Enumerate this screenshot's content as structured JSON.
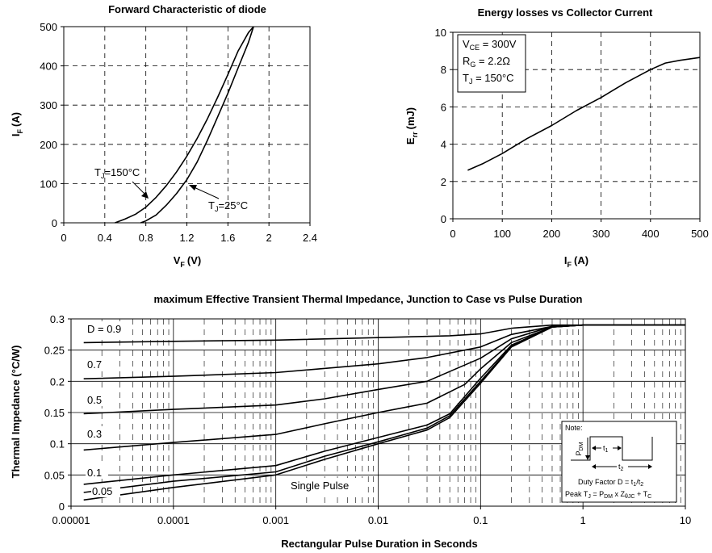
{
  "chart_data": [
    {
      "id": "diode",
      "type": "line",
      "title": "Forward Characteristic of diode",
      "xlabel": "V",
      "xlabel_sub": "F",
      "xlabel_unit": "(V)",
      "ylabel": "I",
      "ylabel_sub": "F",
      "ylabel_unit": "(A)",
      "xlim": [
        0,
        2.4
      ],
      "ylim": [
        0,
        500
      ],
      "xticks": [
        "0",
        "0.4",
        "0.8",
        "1.2",
        "1.6",
        "2",
        "2.4"
      ],
      "yticks": [
        "0",
        "100",
        "200",
        "300",
        "400",
        "500"
      ],
      "grid": "dashed",
      "series": [
        {
          "name": "TJ=150°C",
          "label": {
            "main": "T",
            "sub": "J",
            "rest": "=150°C"
          },
          "x": [
            0.5,
            0.6,
            0.7,
            0.8,
            0.9,
            1.0,
            1.1,
            1.2,
            1.3,
            1.4,
            1.5,
            1.6,
            1.7,
            1.8,
            1.85
          ],
          "y": [
            0,
            10,
            22,
            40,
            65,
            95,
            130,
            170,
            215,
            265,
            320,
            378,
            438,
            485,
            500
          ]
        },
        {
          "name": "TJ=25°C",
          "label": {
            "main": "T",
            "sub": "J",
            "rest": "=25°C"
          },
          "x": [
            0.75,
            0.8,
            0.9,
            1.0,
            1.1,
            1.2,
            1.3,
            1.4,
            1.5,
            1.6,
            1.7,
            1.8,
            1.85
          ],
          "y": [
            0,
            5,
            20,
            45,
            75,
            110,
            155,
            210,
            270,
            330,
            395,
            460,
            500
          ]
        }
      ]
    },
    {
      "id": "energy",
      "type": "line",
      "title": "Energy losses vs Collector Current",
      "xlabel": "I",
      "xlabel_sub": "F",
      "xlabel_unit": "(A)",
      "ylabel": "E",
      "ylabel_sub": "rr",
      "ylabel_unit": "(mJ)",
      "xlim": [
        0,
        500
      ],
      "ylim": [
        0,
        10
      ],
      "xticks": [
        "0",
        "100",
        "200",
        "300",
        "400",
        "500"
      ],
      "yticks": [
        "0",
        "2",
        "4",
        "6",
        "8",
        "10"
      ],
      "grid": "dashed",
      "conditions": [
        {
          "main": "V",
          "sub": "CE",
          "rest": " = 300V"
        },
        {
          "main": "R",
          "sub": "G",
          "rest": " = 2.2Ω"
        },
        {
          "main": "T",
          "sub": "J",
          "rest": " = 150°C"
        }
      ],
      "series": [
        {
          "x": [
            30,
            60,
            100,
            150,
            200,
            250,
            300,
            350,
            400,
            430,
            460,
            500
          ],
          "y": [
            2.6,
            2.95,
            3.5,
            4.3,
            5.0,
            5.8,
            6.5,
            7.3,
            8.0,
            8.35,
            8.5,
            8.65
          ]
        }
      ]
    },
    {
      "id": "thermal",
      "type": "line",
      "title": "maximum Effective Transient Thermal Impedance, Junction to Case vs Pulse Duration",
      "xlabel": "Rectangular Pulse Duration in Seconds",
      "ylabel": "Thermal Impedance (°C/W)",
      "xscale": "log",
      "xlim": [
        1e-05,
        10
      ],
      "ylim": [
        0,
        0.3
      ],
      "xticks": [
        "0.00001",
        "0.0001",
        "0.001",
        "0.01",
        "0.1",
        "1",
        "10"
      ],
      "yticks": [
        "0",
        "0.05",
        "0.1",
        "0.15",
        "0.2",
        "0.25",
        "0.3"
      ],
      "grid": "log minor dashed",
      "curve_labels": [
        "D = 0.9",
        "0.7",
        "0.5",
        "0.3",
        "0.1",
        "0.05",
        "Single Pulse"
      ],
      "series": [
        {
          "label": "D = 0.9",
          "x": [
            1.33e-05,
            0.0001,
            0.001,
            0.01,
            0.05,
            0.1,
            0.2,
            0.5,
            1,
            10
          ],
          "y": [
            0.262,
            0.264,
            0.266,
            0.27,
            0.273,
            0.276,
            0.285,
            0.29,
            0.29,
            0.29
          ]
        },
        {
          "label": "0.7",
          "x": [
            1.33e-05,
            0.0001,
            0.001,
            0.01,
            0.03,
            0.1,
            0.2,
            0.5,
            1,
            10
          ],
          "y": [
            0.204,
            0.208,
            0.214,
            0.228,
            0.238,
            0.255,
            0.275,
            0.288,
            0.29,
            0.29
          ]
        },
        {
          "label": "0.5",
          "x": [
            1.33e-05,
            0.0001,
            0.001,
            0.003,
            0.01,
            0.03,
            0.1,
            0.2,
            0.5,
            1,
            10
          ],
          "y": [
            0.148,
            0.155,
            0.162,
            0.172,
            0.187,
            0.2,
            0.237,
            0.268,
            0.288,
            0.29,
            0.29
          ]
        },
        {
          "label": "0.3",
          "x": [
            1.33e-05,
            0.0001,
            0.001,
            0.003,
            0.01,
            0.03,
            0.07,
            0.1,
            0.2,
            0.5,
            1,
            10
          ],
          "y": [
            0.09,
            0.102,
            0.115,
            0.132,
            0.15,
            0.165,
            0.195,
            0.22,
            0.262,
            0.287,
            0.29,
            0.29
          ]
        },
        {
          "label": "0.1",
          "x": [
            1.33e-05,
            0.0001,
            0.001,
            0.003,
            0.01,
            0.03,
            0.05,
            0.1,
            0.2,
            0.5,
            1,
            10
          ],
          "y": [
            0.035,
            0.05,
            0.065,
            0.088,
            0.11,
            0.13,
            0.148,
            0.205,
            0.258,
            0.287,
            0.29,
            0.29
          ]
        },
        {
          "label": "0.05",
          "x": [
            1.33e-05,
            0.0001,
            0.001,
            0.003,
            0.01,
            0.03,
            0.05,
            0.1,
            0.2,
            0.5,
            1,
            10
          ],
          "y": [
            0.022,
            0.04,
            0.055,
            0.08,
            0.103,
            0.125,
            0.145,
            0.2,
            0.256,
            0.287,
            0.29,
            0.29
          ]
        },
        {
          "label": "Single Pulse",
          "x": [
            1.33e-05,
            0.0001,
            0.001,
            0.003,
            0.01,
            0.03,
            0.05,
            0.1,
            0.2,
            0.5,
            1,
            10
          ],
          "y": [
            0.01,
            0.03,
            0.05,
            0.075,
            0.1,
            0.122,
            0.142,
            0.197,
            0.255,
            0.287,
            0.29,
            0.29
          ]
        }
      ],
      "note": {
        "title": "Note:",
        "pdm": {
          "main": "P",
          "sub": "DM"
        },
        "t1": {
          "main": "t",
          "sub": "1"
        },
        "t2": {
          "main": "t",
          "sub": "2"
        },
        "duty_factor": "Duty Factor  D = t",
        "duty_sub": "1",
        "duty_tail": "/t",
        "duty_sub2": "2",
        "peak": "Peak T",
        "peak_sub": "J",
        "peak_rest1": " = P",
        "peak_sub2": "DM",
        "peak_rest2": " x Z",
        "peak_sub3": "θJC",
        "peak_rest3": " + T",
        "peak_sub4": "C"
      }
    }
  ]
}
